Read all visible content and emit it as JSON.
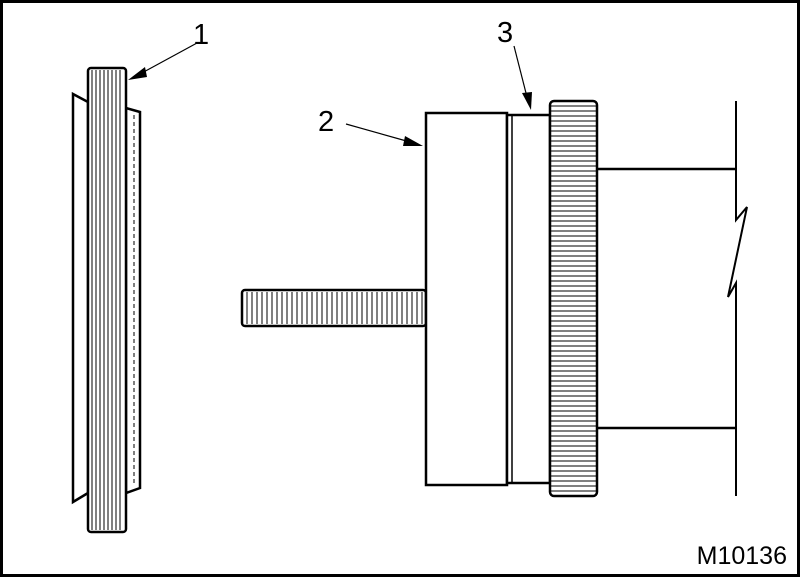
{
  "callouts": {
    "one": "1",
    "two": "2",
    "three": "3"
  },
  "figure_ref": "M10136",
  "colors": {
    "line": "#000000",
    "background": "#ffffff"
  }
}
